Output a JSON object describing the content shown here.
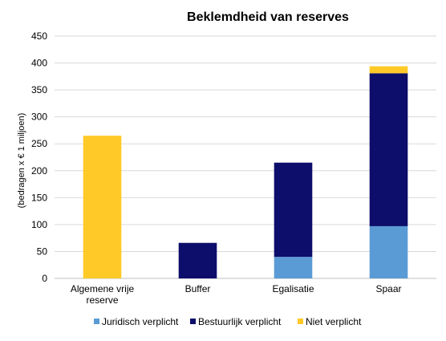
{
  "chart_data": {
    "type": "bar",
    "stacked": true,
    "title": "Beklemdheid van reserves",
    "xlabel": "",
    "ylabel": "(bedragen x € 1 miljoen)",
    "ylim": [
      0,
      450
    ],
    "yticks": [
      "0",
      "50",
      "100",
      "150",
      "200",
      "250",
      "300",
      "350",
      "400",
      "450"
    ],
    "categories": [
      [
        "Algemene vrije",
        "reserve"
      ],
      [
        "Buffer"
      ],
      [
        "Egalisatie"
      ],
      [
        "Spaar"
      ]
    ],
    "series": [
      {
        "name": "Juridisch verplicht",
        "color": "#5b9bd5",
        "values": [
          0,
          0,
          40,
          97
        ]
      },
      {
        "name": "Bestuurlijk verplicht",
        "color": "#0d0d6b",
        "values": [
          0,
          66,
          175,
          284
        ]
      },
      {
        "name": "Niet verplicht",
        "color": "#ffca28",
        "values": [
          265,
          0,
          0,
          13
        ]
      }
    ],
    "grid": true,
    "legend": "bottom"
  }
}
